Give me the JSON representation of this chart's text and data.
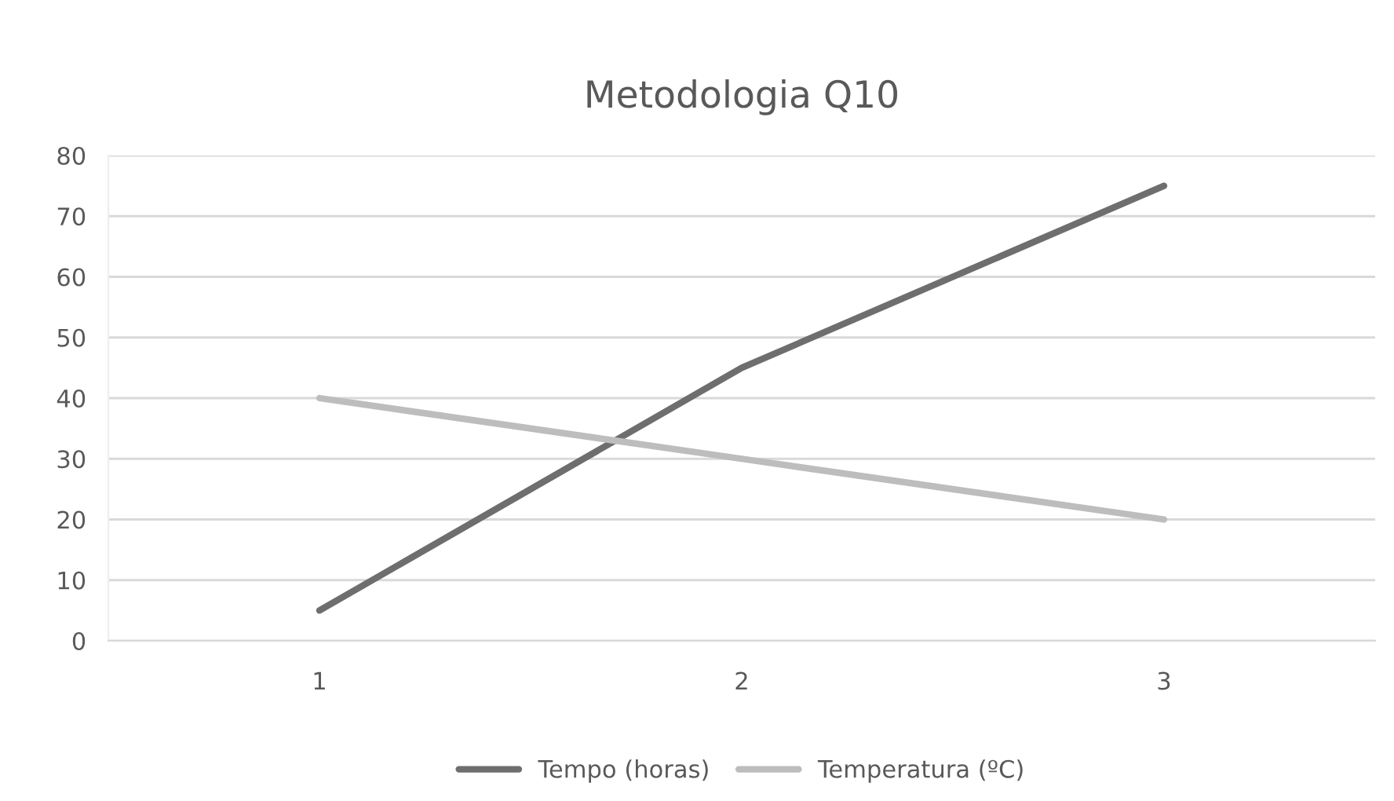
{
  "chart_data": {
    "type": "line",
    "title": "Metodologia Q10",
    "categories": [
      "1",
      "2",
      "3"
    ],
    "series": [
      {
        "name": "Tempo (horas)",
        "color": "#6e6e6e",
        "values": [
          5,
          45,
          75
        ]
      },
      {
        "name": "Temperatura (ºC)",
        "color": "#bdbdbd",
        "values": [
          40,
          30,
          20
        ]
      }
    ],
    "ylim": [
      0,
      80
    ],
    "yticks": [
      0,
      10,
      20,
      30,
      40,
      50,
      60,
      70,
      80
    ],
    "grid": "y",
    "legend": "bottom",
    "marker": "none",
    "line_style": "solid"
  }
}
